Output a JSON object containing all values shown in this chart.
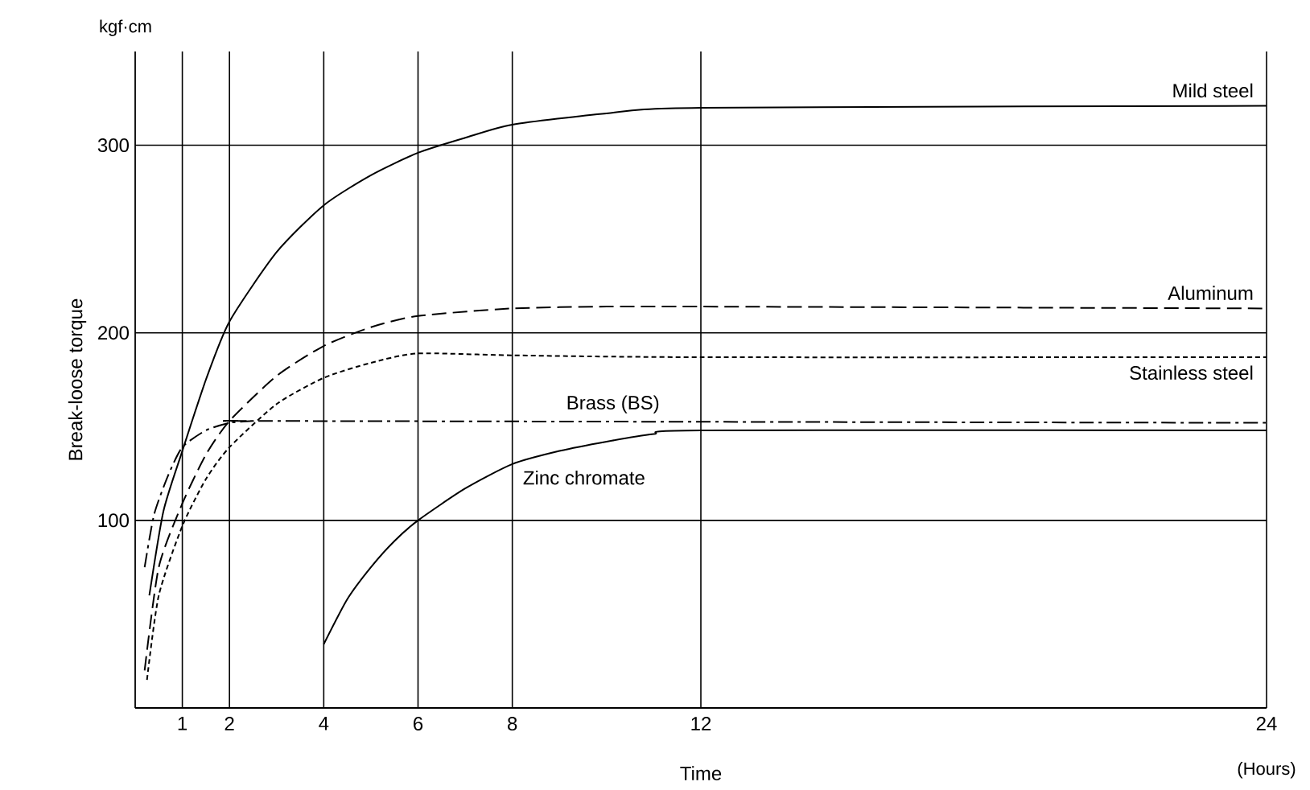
{
  "chart_data": {
    "type": "line",
    "xlabel": "Time",
    "ylabel": "Break-loose torque",
    "annotations": [
      "kgf·cm",
      "(Hours)"
    ],
    "xlim": [
      0,
      24
    ],
    "ylim": [
      0,
      350
    ],
    "xticks": [
      1,
      2,
      4,
      6,
      8,
      12,
      24
    ],
    "yticks": [
      100,
      200,
      300
    ],
    "grid": true,
    "legend": false,
    "marker": "none",
    "series": [
      {
        "name": "Mild steel",
        "color": "#000000",
        "line_style": "solid",
        "x": [
          0.3,
          0.6,
          1,
          1.5,
          2,
          3,
          4,
          5,
          6,
          7,
          8,
          10,
          12,
          24
        ],
        "values": [
          60,
          105,
          137,
          175,
          206,
          243,
          268,
          284,
          296,
          304,
          311,
          317,
          320,
          321
        ]
      },
      {
        "name": "Aluminum",
        "color": "#000000",
        "line_style": "dashed",
        "x": [
          0.2,
          0.5,
          1,
          1.5,
          2,
          3,
          4,
          5,
          6,
          8,
          10,
          12,
          24
        ],
        "values": [
          20,
          75,
          109,
          135,
          153,
          177,
          193,
          203,
          209,
          213,
          214,
          214,
          213
        ]
      },
      {
        "name": "Stainless steel",
        "color": "#000000",
        "line_style": "dotted",
        "x": [
          0.25,
          0.5,
          1,
          1.5,
          2,
          3,
          4,
          5,
          6,
          8,
          12,
          24
        ],
        "values": [
          15,
          60,
          97,
          122,
          139,
          162,
          176,
          184,
          189,
          188,
          187,
          187
        ]
      },
      {
        "name": "Brass (BS)",
        "color": "#000000",
        "line_style": "dashdot",
        "x": [
          0.2,
          0.4,
          0.7,
          1,
          1.5,
          2,
          2.5,
          3,
          24
        ],
        "values": [
          75,
          103,
          124,
          139,
          148,
          152,
          153,
          153,
          152
        ]
      },
      {
        "name": "Zinc chromate",
        "color": "#000000",
        "line_style": "solid",
        "x": [
          4,
          4.5,
          5,
          5.5,
          6,
          7,
          8,
          9,
          10,
          11,
          12,
          24
        ],
        "values": [
          34,
          58,
          75,
          89,
          100,
          117,
          130,
          137,
          142,
          146,
          148,
          148
        ]
      }
    ]
  }
}
